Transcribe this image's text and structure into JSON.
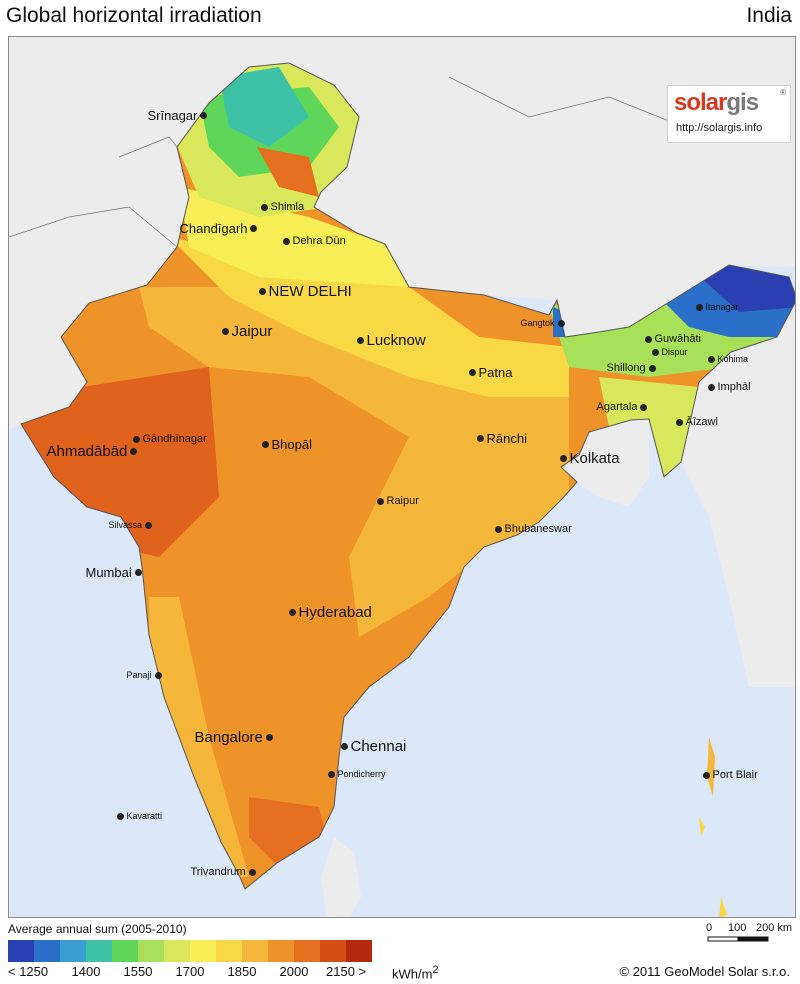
{
  "header": {
    "title": "Global horizontal irradiation",
    "region": "India"
  },
  "logo": {
    "brand_part1": "solar",
    "brand_part2": "gis",
    "registered": "®",
    "url": "http://solargis.info"
  },
  "cities": [
    {
      "name": "Srīnagar",
      "size": "l"
    },
    {
      "name": "Shimla",
      "size": "m"
    },
    {
      "name": "Chandīgarh",
      "size": "l"
    },
    {
      "name": "Dehra Dūn",
      "size": "m"
    },
    {
      "name": "NEW DELHI",
      "size": "xl"
    },
    {
      "name": "Jaipur",
      "size": "xl"
    },
    {
      "name": "Lucknow",
      "size": "xl"
    },
    {
      "name": "Patna",
      "size": "l"
    },
    {
      "name": "Gangtok",
      "size": "s"
    },
    {
      "name": "Itanagar",
      "size": "s"
    },
    {
      "name": "Guwāhāti",
      "size": "m"
    },
    {
      "name": "Dispur",
      "size": "s"
    },
    {
      "name": "Kohima",
      "size": "s"
    },
    {
      "name": "Shillong",
      "size": "m"
    },
    {
      "name": "Imphāl",
      "size": "m"
    },
    {
      "name": "Agartala",
      "size": "m"
    },
    {
      "name": "Āīzawl",
      "size": "m"
    },
    {
      "name": "Gāndhīnagar",
      "size": "m"
    },
    {
      "name": "Ahmadābād",
      "size": "xl"
    },
    {
      "name": "Bhopāl",
      "size": "l"
    },
    {
      "name": "Rānchi",
      "size": "l"
    },
    {
      "name": "Kolkata",
      "size": "xl"
    },
    {
      "name": "Raipur",
      "size": "m"
    },
    {
      "name": "Silvassa",
      "size": "s"
    },
    {
      "name": "Bhubaneswar",
      "size": "m"
    },
    {
      "name": "Mumbai",
      "size": "l"
    },
    {
      "name": "Hyderabad",
      "size": "xl"
    },
    {
      "name": "Panaji",
      "size": "s"
    },
    {
      "name": "Bangalore",
      "size": "xl"
    },
    {
      "name": "Chennai",
      "size": "xl"
    },
    {
      "name": "Pondicherry",
      "size": "s"
    },
    {
      "name": "Port Blair",
      "size": "m"
    },
    {
      "name": "Kavaratti",
      "size": "s"
    },
    {
      "name": "Trivandrum",
      "size": "m"
    }
  ],
  "legend": {
    "title": "Average annual sum (2005-2010)",
    "colors": [
      "#2a3fb0",
      "#2a70c8",
      "#3a9ed2",
      "#3ec2a6",
      "#5fd65a",
      "#a8e05a",
      "#d9e85a",
      "#f7ef55",
      "#f9d845",
      "#f5b73a",
      "#ee9328",
      "#e66e1f",
      "#d44e15",
      "#b52a0f"
    ],
    "labels": [
      "< 1250",
      "1400",
      "1550",
      "1700",
      "1850",
      "2000",
      "2150 >"
    ],
    "unit": "kWh/m",
    "unit_sup": "2"
  },
  "scale": {
    "labels": [
      "0",
      "100",
      "200 km"
    ]
  },
  "footer": {
    "copyright": "© 2011 GeoModel Solar s.r.o."
  }
}
